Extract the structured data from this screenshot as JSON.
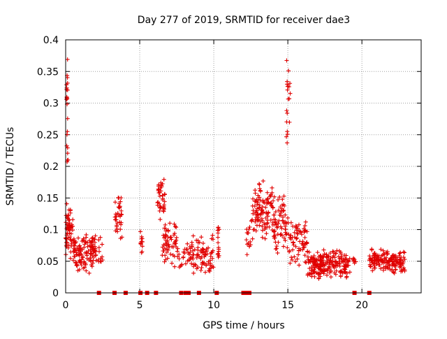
{
  "chart_data": {
    "type": "scatter",
    "title": "Day 277 of 2019, SRMTID for receiver dae3",
    "xlabel": "GPS time / hours",
    "ylabel": "SRMTID / TECUs",
    "xlim": [
      0,
      24
    ],
    "ylim": [
      0,
      0.4
    ],
    "grid": true,
    "marker": "+",
    "color": "#e00000",
    "x_ticks": [
      0,
      5,
      10,
      15,
      20
    ],
    "x_tick_labels": [
      "0",
      "5",
      "10",
      "15",
      "20"
    ],
    "y_ticks": [
      0,
      0.05,
      0.1,
      0.15,
      0.2,
      0.25,
      0.3,
      0.35,
      0.4
    ],
    "y_tick_labels": [
      "0",
      "0.05",
      "0.1",
      "0.15",
      "0.2",
      "0.25",
      "0.3",
      "0.35",
      "0.4"
    ],
    "series": [
      {
        "name": "SRMTID",
        "clusters": [
          {
            "x_range": [
              0.0,
              0.5
            ],
            "y_center": 0.1,
            "y_spread": 0.05,
            "count": 60
          },
          {
            "x_range": [
              0.05,
              0.15
            ],
            "y_center": 0.32,
            "y_spread": 0.07,
            "count": 14
          },
          {
            "x_range": [
              0.05,
              0.2
            ],
            "y_center": 0.22,
            "y_spread": 0.04,
            "count": 8
          },
          {
            "x_range": [
              0.5,
              2.2
            ],
            "y_center": 0.065,
            "y_spread": 0.035,
            "count": 130
          },
          {
            "x_range": [
              2.2,
              2.5
            ],
            "y_center": 0.07,
            "y_spread": 0.04,
            "count": 12
          },
          {
            "x_range": [
              3.3,
              3.8
            ],
            "y_center": 0.12,
            "y_spread": 0.04,
            "count": 35
          },
          {
            "x_range": [
              5.0,
              5.2
            ],
            "y_center": 0.075,
            "y_spread": 0.03,
            "count": 12
          },
          {
            "x_range": [
              6.2,
              6.7
            ],
            "y_center": 0.15,
            "y_spread": 0.04,
            "count": 40
          },
          {
            "x_range": [
              6.5,
              7.5
            ],
            "y_center": 0.08,
            "y_spread": 0.04,
            "count": 60
          },
          {
            "x_range": [
              7.5,
              8.5
            ],
            "y_center": 0.06,
            "y_spread": 0.03,
            "count": 30
          },
          {
            "x_range": [
              8.5,
              10.0
            ],
            "y_center": 0.06,
            "y_spread": 0.035,
            "count": 80
          },
          {
            "x_range": [
              10.2,
              10.4
            ],
            "y_center": 0.08,
            "y_spread": 0.04,
            "count": 14
          },
          {
            "x_range": [
              12.2,
              12.5
            ],
            "y_center": 0.08,
            "y_spread": 0.03,
            "count": 14
          },
          {
            "x_range": [
              12.5,
              14.0
            ],
            "y_center": 0.13,
            "y_spread": 0.05,
            "count": 110
          },
          {
            "x_range": [
              14.0,
              15.0
            ],
            "y_center": 0.11,
            "y_spread": 0.05,
            "count": 70
          },
          {
            "x_range": [
              14.9,
              15.2
            ],
            "y_center": 0.3,
            "y_spread": 0.08,
            "count": 20
          },
          {
            "x_range": [
              15.0,
              16.3
            ],
            "y_center": 0.08,
            "y_spread": 0.04,
            "count": 70
          },
          {
            "x_range": [
              16.3,
              19.2
            ],
            "y_center": 0.045,
            "y_spread": 0.025,
            "count": 220
          },
          {
            "x_range": [
              19.4,
              19.6
            ],
            "y_center": 0.05,
            "y_spread": 0.015,
            "count": 8
          },
          {
            "x_range": [
              20.5,
              22.9
            ],
            "y_center": 0.05,
            "y_spread": 0.02,
            "count": 170
          }
        ]
      }
    ],
    "data_gaps_at_zero_hours": [
      2.25,
      3.3,
      4.05,
      5.05,
      5.5,
      6.1,
      7.8,
      8.1,
      8.3,
      9.0,
      10.2,
      12.0,
      12.25,
      12.4,
      19.5,
      20.5
    ]
  }
}
